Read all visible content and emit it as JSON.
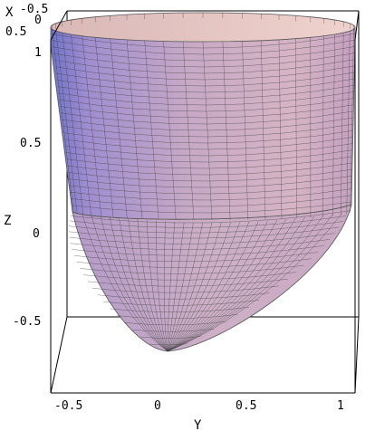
{
  "plot": {
    "type": "3d-surface",
    "surfaces": [
      "paraboloid bowl (lower part)",
      "cylinder wall (upper part)"
    ],
    "colors": {
      "surface_light": "#e8c8c6",
      "surface_mid": "#c3a6c6",
      "surface_shadow": "#7f7fcf",
      "mesh": "#3a3a3a",
      "box": "#000000"
    },
    "x_axis": {
      "label": "X",
      "ticks": [
        "-0.5",
        "0",
        "0.5"
      ]
    },
    "y_axis": {
      "label": "Y",
      "ticks": [
        "-0.5",
        "0",
        "0.5",
        "1"
      ]
    },
    "z_axis": {
      "label": "Z",
      "ticks": [
        "-0.5",
        "0",
        "0.5",
        "1"
      ]
    }
  }
}
